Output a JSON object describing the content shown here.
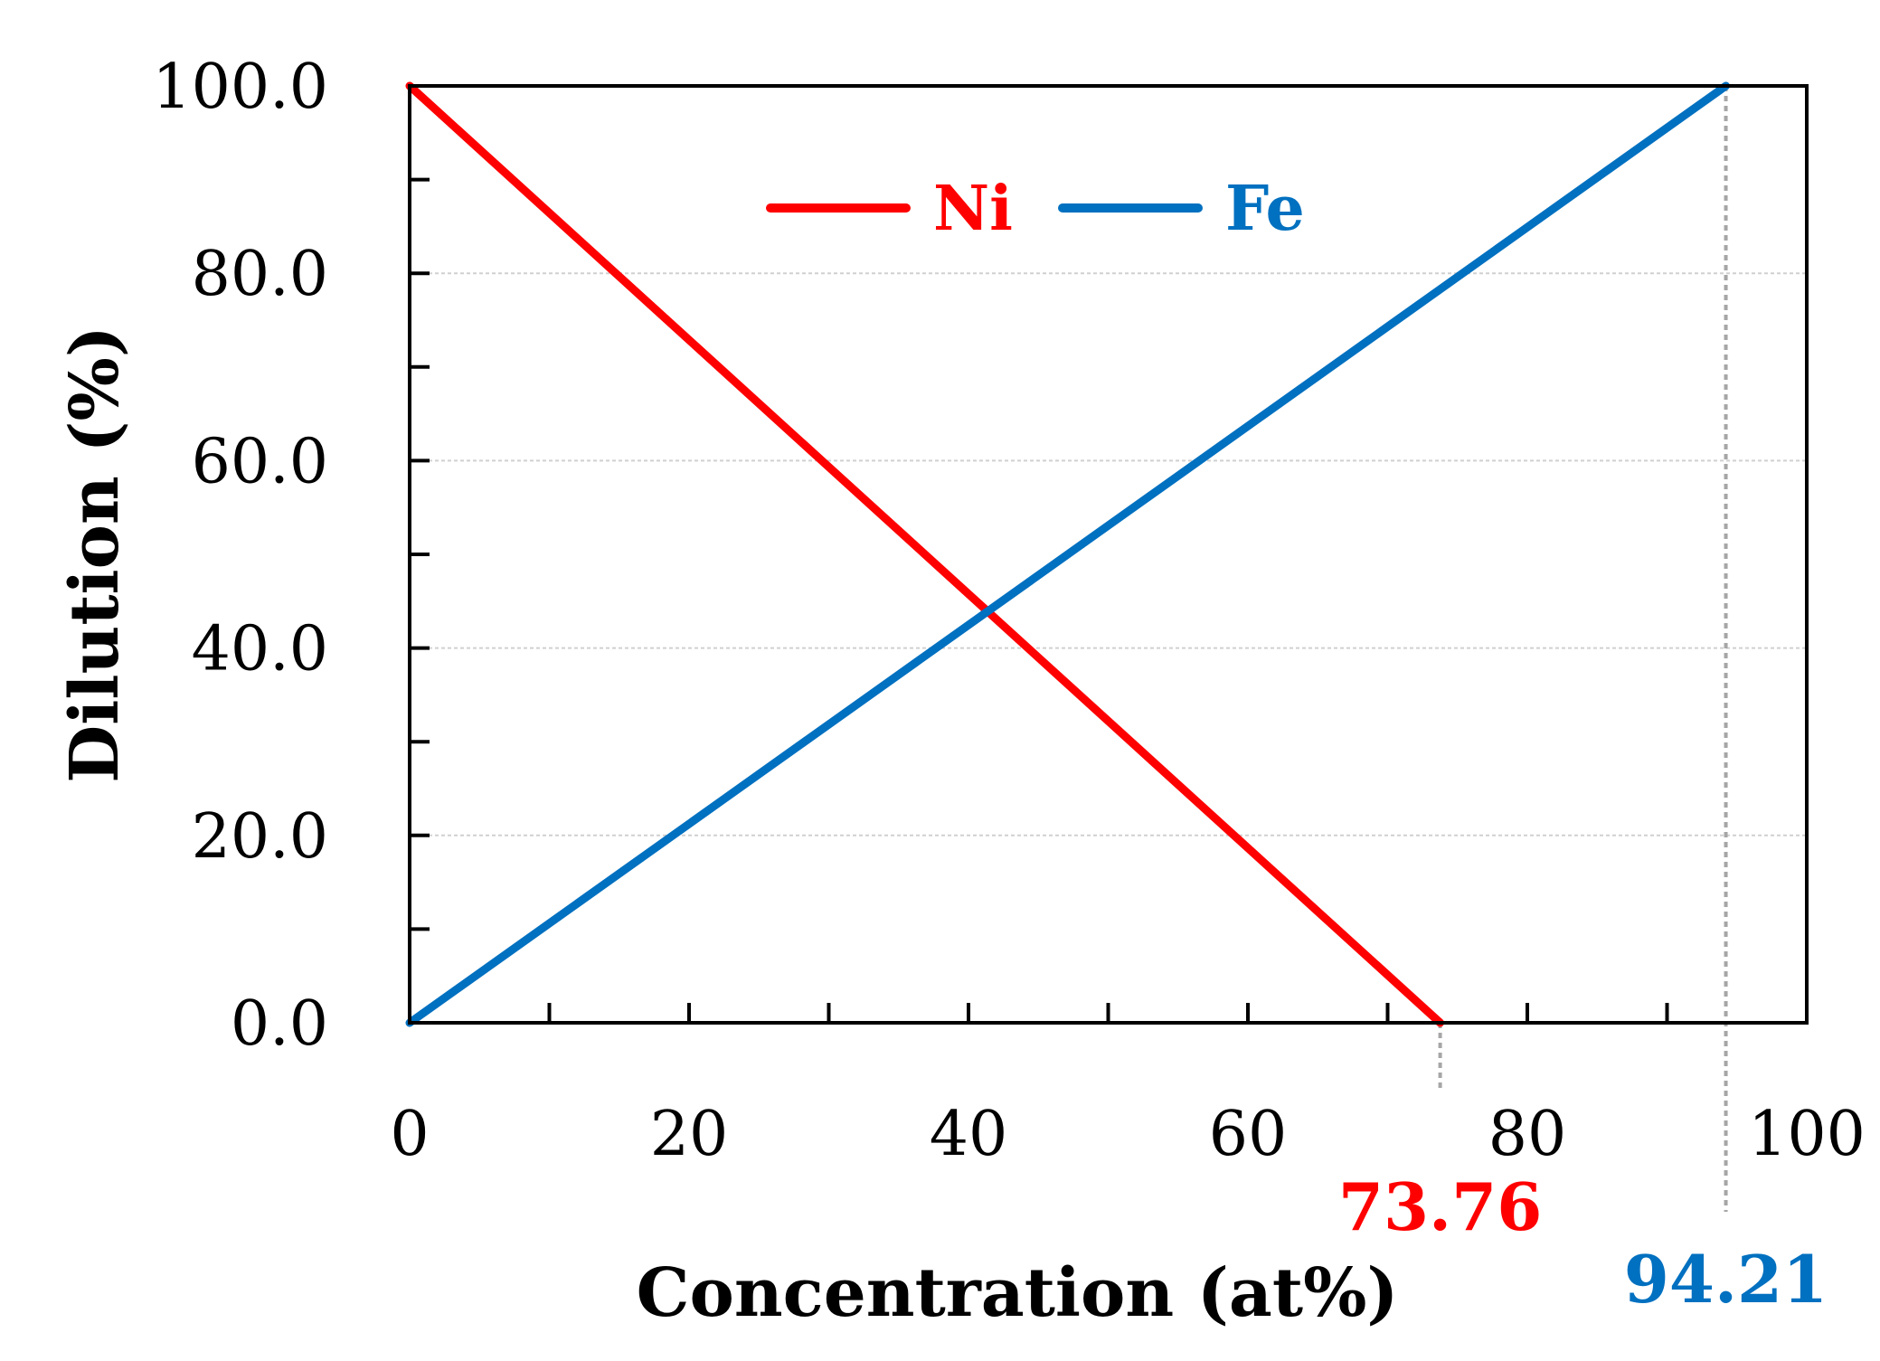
{
  "chart_data": {
    "type": "line",
    "xlabel": "Concentration (at%)",
    "ylabel": "Dilution (%)",
    "xlim": [
      0,
      100
    ],
    "ylim": [
      0,
      100
    ],
    "x_ticks": [
      "0",
      "20",
      "40",
      "60",
      "80",
      "100"
    ],
    "x_tick_values": [
      0,
      20,
      40,
      60,
      80,
      100
    ],
    "y_ticks": [
      "0.0",
      "20.0",
      "40.0",
      "60.0",
      "80.0",
      "100.0"
    ],
    "y_tick_values": [
      0,
      20,
      40,
      60,
      80,
      100
    ],
    "grid": true,
    "legend_position": "top-center",
    "series": [
      {
        "name": "Ni",
        "color": "#ff0000",
        "x": [
          0,
          73.76
        ],
        "y": [
          100,
          0
        ]
      },
      {
        "name": "Fe",
        "color": "#0070c0",
        "x": [
          0,
          94.21
        ],
        "y": [
          0,
          100
        ]
      }
    ],
    "annotations": [
      {
        "label": "73.76",
        "x": 73.76,
        "color": "#ff0000"
      },
      {
        "label": "94.21",
        "x": 94.21,
        "color": "#0070c0"
      }
    ]
  }
}
